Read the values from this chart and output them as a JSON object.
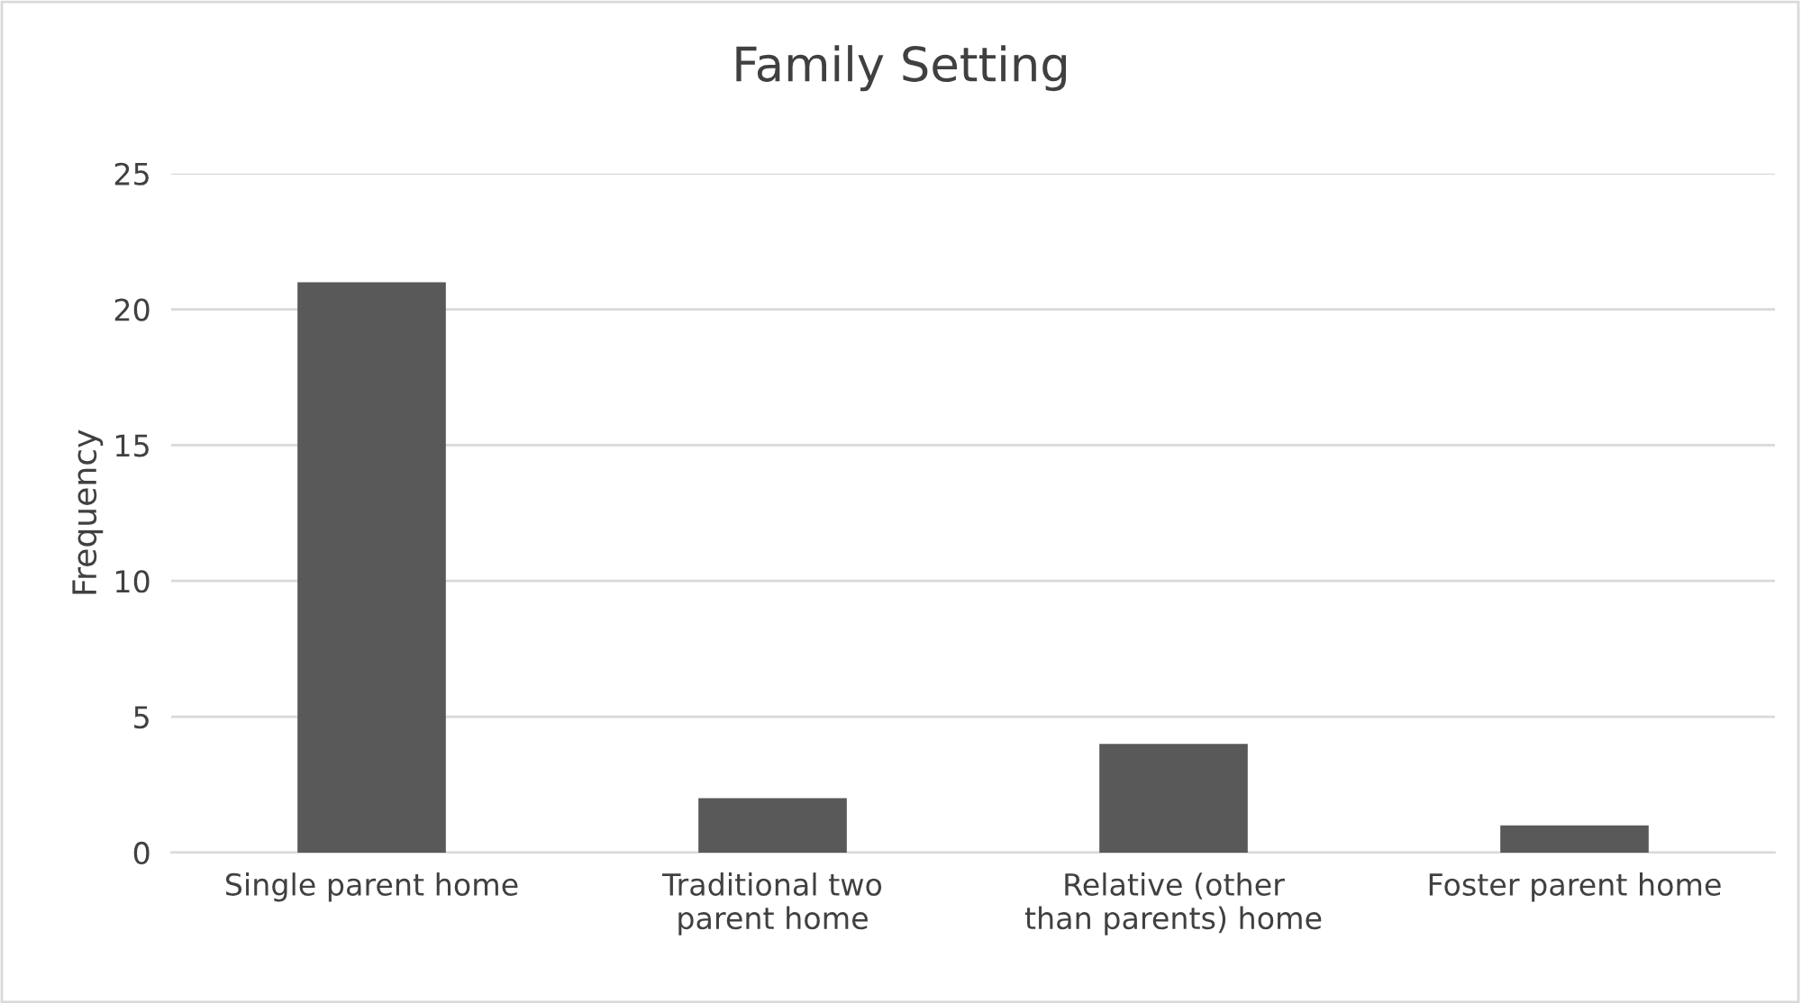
{
  "chart_data": {
    "type": "bar",
    "title": "Family Setting",
    "ylabel": "Frequency",
    "categories": [
      "Single parent home",
      "Traditional two parent home",
      "Relative (other than parents) home",
      "Foster parent home"
    ],
    "values": [
      21,
      2,
      4,
      1
    ],
    "color": "#595959",
    "ylim": [
      0,
      25
    ],
    "yticks": [
      0,
      5,
      10,
      15,
      20,
      25
    ],
    "grid": "y",
    "legend": false
  }
}
